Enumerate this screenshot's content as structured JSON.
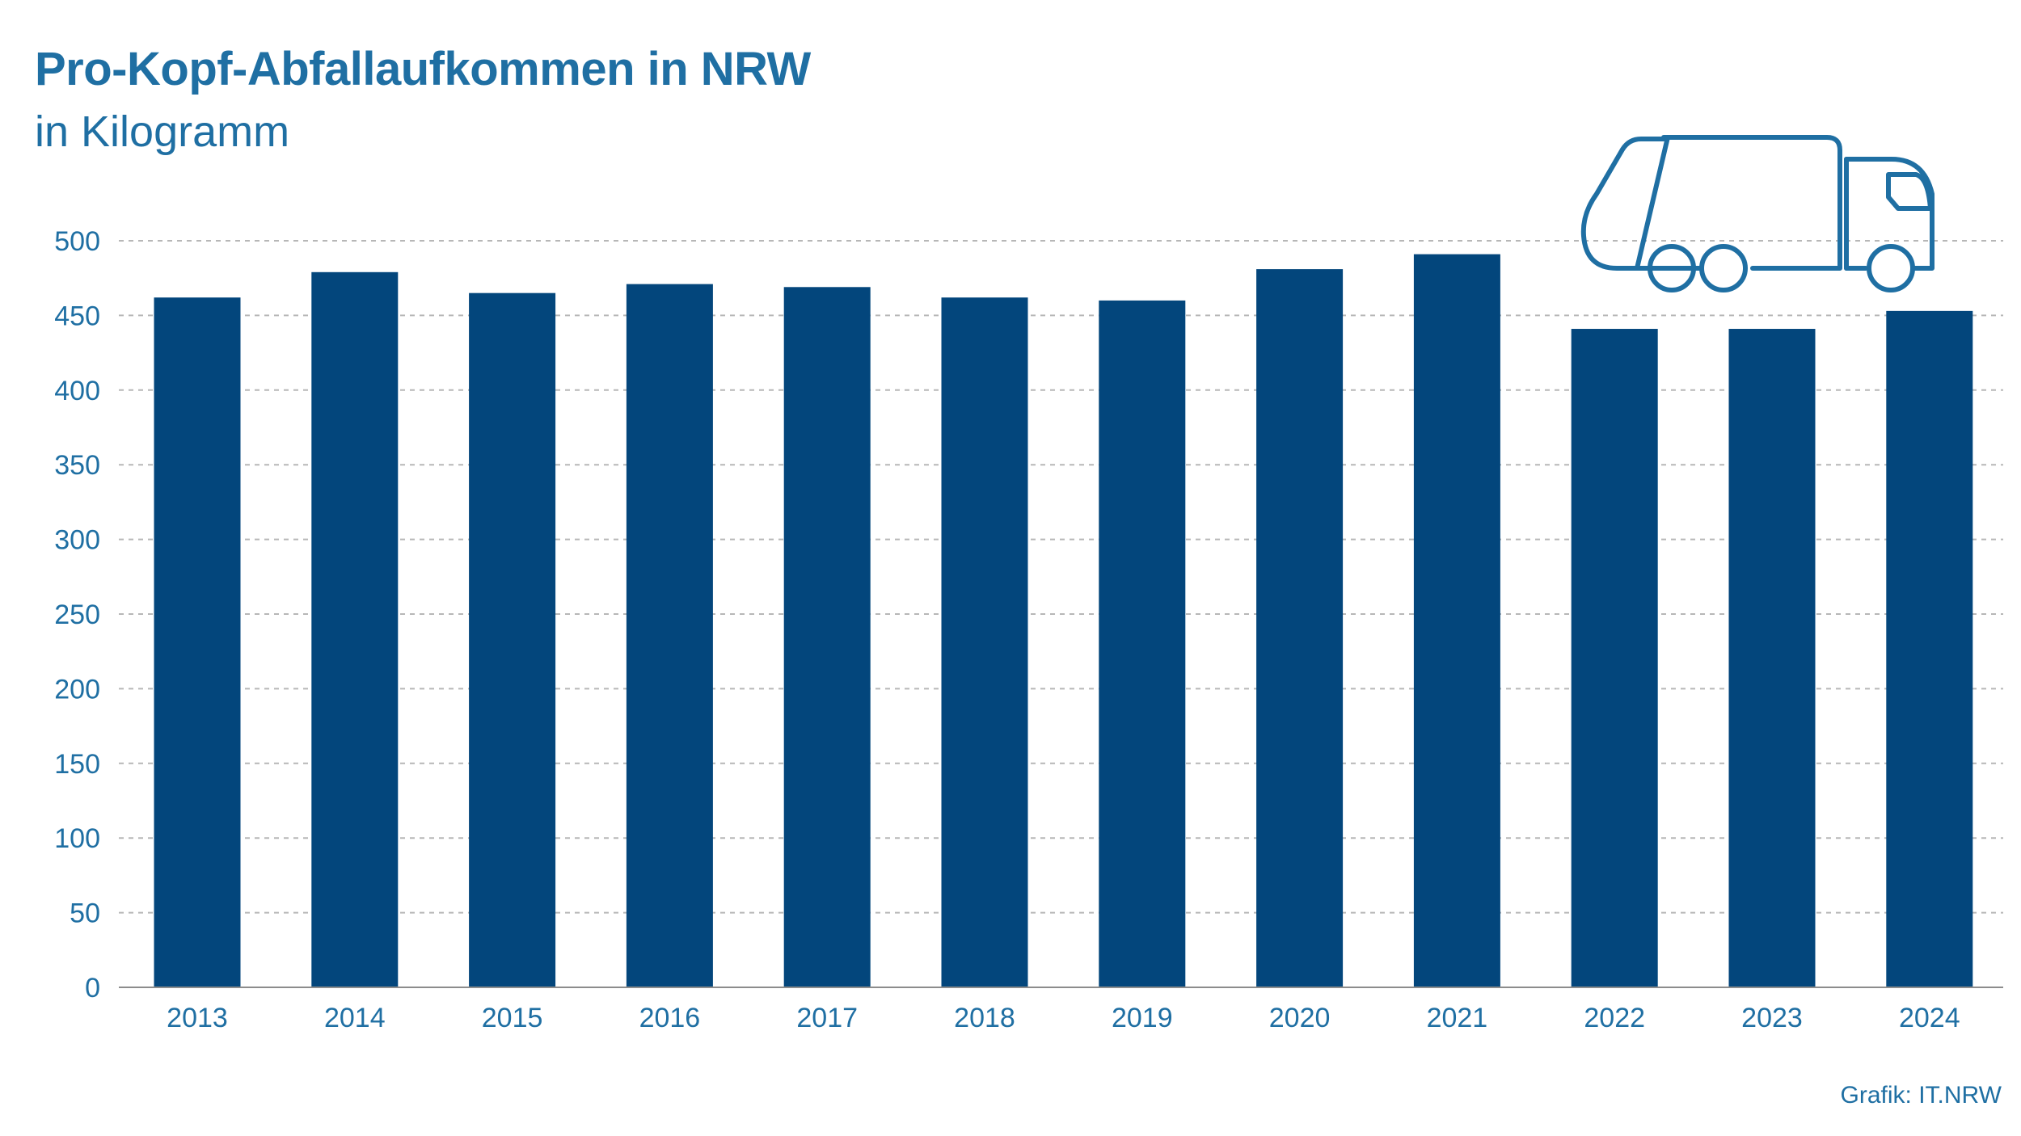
{
  "header": {
    "title": "Pro-Kopf-Abfallaufkommen in NRW",
    "subtitle": "in Kilogramm"
  },
  "footer": {
    "source": "Grafik: IT.NRW"
  },
  "colors": {
    "bar": "#03467c",
    "text": "#1f6fa3",
    "grid": "#b7b7b7",
    "axis": "#8c8c8c"
  },
  "icons": [
    "garbage-truck-icon"
  ],
  "chart_data": {
    "type": "bar",
    "title": "Pro-Kopf-Abfallaufkommen in NRW",
    "subtitle": "in Kilogramm",
    "categories": [
      "2013",
      "2014",
      "2015",
      "2016",
      "2017",
      "2018",
      "2019",
      "2020",
      "2021",
      "2022",
      "2023",
      "2024"
    ],
    "values": [
      462,
      479,
      465,
      471,
      469,
      462,
      460,
      481,
      491,
      441,
      441,
      453
    ],
    "ylim": [
      0,
      500
    ],
    "yticks": [
      "0",
      "50",
      "100",
      "150",
      "200",
      "250",
      "300",
      "350",
      "400",
      "450",
      "500"
    ],
    "grid": "dashed horizontal",
    "legend": "none"
  }
}
